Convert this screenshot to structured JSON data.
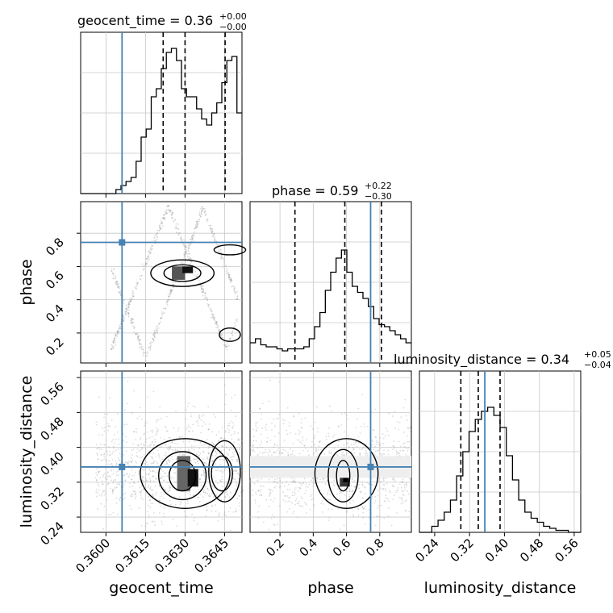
{
  "chart_data": {
    "type": "corner",
    "parameters": [
      "geocent_time",
      "phase",
      "luminosity_distance"
    ],
    "axis_labels": {
      "geocent_time": "geocent_time",
      "phase": "phase",
      "luminosity_distance": "luminosity_distance"
    },
    "ranges": {
      "geocent_time": [
        0.35904,
        0.36516
      ],
      "phase": [
        0.02,
        0.99
      ],
      "luminosity_distance": [
        0.205,
        0.575
      ]
    },
    "ticks": {
      "geocent_time": [
        "0.3600",
        "0.3615",
        "0.3630",
        "0.3645"
      ],
      "phase": [
        "0.2",
        "0.4",
        "0.6",
        "0.8"
      ],
      "luminosity_distance": [
        "0.24",
        "0.32",
        "0.40",
        "0.48",
        "0.56"
      ]
    },
    "truths": {
      "geocent_time": 0.36061,
      "phase": 0.745,
      "luminosity_distance": 0.355
    },
    "quantiles": {
      "geocent_time": [
        0.36217,
        0.363,
        0.36452
      ],
      "phase": [
        0.29,
        0.59,
        0.81
      ],
      "luminosity_distance": [
        0.3,
        0.34,
        0.39
      ]
    },
    "titles": {
      "geocent_time": {
        "label": "geocent_time = 0.36",
        "plus": "+0.00",
        "minus": "−0.00"
      },
      "phase": {
        "label": "phase = 0.59",
        "plus": "+0.22",
        "minus": "−0.30"
      },
      "luminosity_distance": {
        "label": "luminosity_distance = 0.34",
        "plus": "+0.05",
        "minus": "−0.04"
      }
    },
    "histograms": {
      "geocent_time": [
        0,
        0,
        0,
        0,
        0,
        0,
        0,
        0.02,
        0.04,
        0.06,
        0.08,
        0.16,
        0.28,
        0.32,
        0.48,
        0.52,
        0.62,
        0.7,
        0.72,
        0.66,
        0.52,
        0.48,
        0.48,
        0.42,
        0.37,
        0.34,
        0.4,
        0.45,
        0.55,
        0.66,
        0.68,
        0.4
      ],
      "phase": [
        0.1,
        0.12,
        0.09,
        0.08,
        0.08,
        0.07,
        0.06,
        0.07,
        0.07,
        0.07,
        0.08,
        0.12,
        0.18,
        0.25,
        0.36,
        0.45,
        0.52,
        0.56,
        0.45,
        0.38,
        0.35,
        0.32,
        0.28,
        0.22,
        0.19,
        0.18,
        0.16,
        0.14,
        0.12,
        0.1
      ],
      "luminosity_distance": [
        0,
        0,
        0.03,
        0.06,
        0.1,
        0.16,
        0.28,
        0.4,
        0.5,
        0.56,
        0.6,
        0.62,
        0.58,
        0.52,
        0.38,
        0.26,
        0.16,
        0.1,
        0.07,
        0.05,
        0.03,
        0.02,
        0.01,
        0.01,
        0,
        0
      ]
    }
  }
}
